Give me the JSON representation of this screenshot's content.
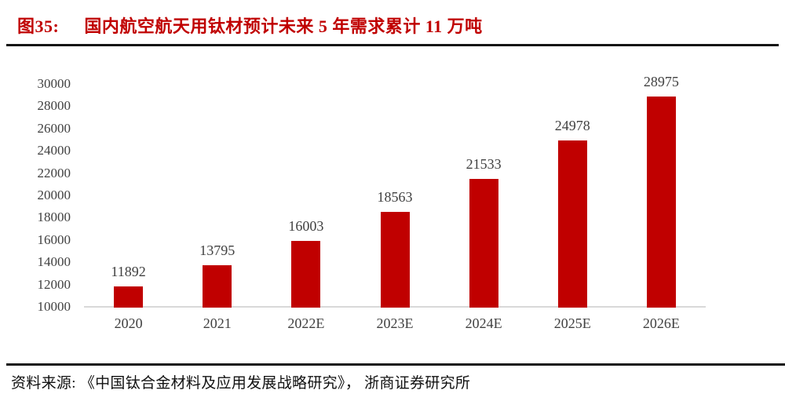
{
  "figure": {
    "label": "图35:",
    "title": "国内航空航天用钛材预计未来 5 年需求累计 11 万吨"
  },
  "source": "资料来源: 《中国钛合金材料及应用发展战略研究》， 浙商证券研究所",
  "colors": {
    "accent_red": "#C00000",
    "bar_red": "#C00000",
    "label_gray": "#404040",
    "axis_gray": "#D9D9D9",
    "rule_dark": "#141414"
  },
  "chart_data": {
    "type": "bar",
    "categories": [
      "2020",
      "2021",
      "2022E",
      "2023E",
      "2024E",
      "2025E",
      "2026E"
    ],
    "values": [
      11892,
      13795,
      16003,
      18563,
      21533,
      24978,
      28975
    ],
    "title": "国内航空航天用钛材预计未来 5 年需求累计 11 万吨",
    "xlabel": "",
    "ylabel": "",
    "ylim": [
      10000,
      30000
    ],
    "ytick_step": 2000,
    "yticks": [
      10000,
      12000,
      14000,
      16000,
      18000,
      20000,
      22000,
      24000,
      26000,
      28000,
      30000
    ],
    "grid": false,
    "legend": "none",
    "data_labels": true,
    "bar_color": "#C00000"
  }
}
